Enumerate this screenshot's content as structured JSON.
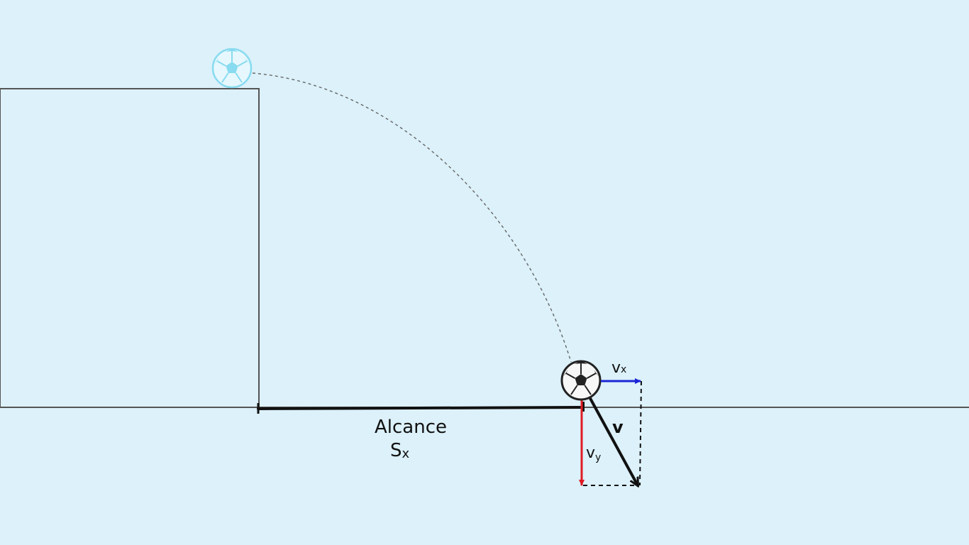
{
  "diagram": {
    "range_label": "Alcance",
    "range_symbol_base": "S",
    "range_symbol_sub": "x",
    "vx_base": "v",
    "vx_sub": "x",
    "vy_base": "v",
    "vy_sub": "y",
    "v_label": "v"
  },
  "colors": {
    "background": "#dcf1fa",
    "ink": "#111111",
    "ground": "#555555",
    "vx_arrow": "#1b25d6",
    "vy_arrow": "#e01b24",
    "ghost_ball": "#7fd9f0",
    "trajectory": "#666666"
  },
  "icons": {
    "start_ball": "soccer-ball-icon",
    "end_ball": "soccer-ball-icon"
  }
}
